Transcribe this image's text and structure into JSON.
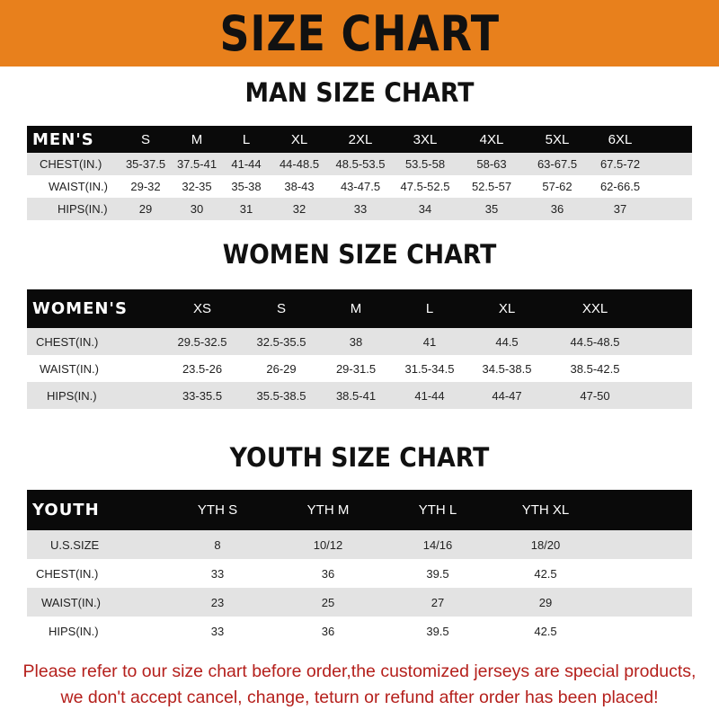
{
  "banner_title": "SIZE CHART",
  "accent_color": "#e8801c",
  "men": {
    "title": "MAN SIZE CHART",
    "header": "MEN'S",
    "sizes": [
      "S",
      "M",
      "L",
      "XL",
      "2XL",
      "3XL",
      "4XL",
      "5XL",
      "6XL"
    ],
    "rows": [
      {
        "label": "CHEST(IN.)",
        "values": [
          "35-37.5",
          "37.5-41",
          "41-44",
          "44-48.5",
          "48.5-53.5",
          "53.5-58",
          "58-63",
          "63-67.5",
          "67.5-72"
        ]
      },
      {
        "label": "WAIST(IN.)",
        "values": [
          "29-32",
          "32-35",
          "35-38",
          "38-43",
          "43-47.5",
          "47.5-52.5",
          "52.5-57",
          "57-62",
          "62-66.5"
        ]
      },
      {
        "label": "HIPS(IN.)",
        "values": [
          "29",
          "30",
          "31",
          "32",
          "33",
          "34",
          "35",
          "36",
          "37"
        ]
      }
    ]
  },
  "women": {
    "title": "WOMEN SIZE CHART",
    "header": "WOMEN'S",
    "sizes": [
      "XS",
      "S",
      "M",
      "L",
      "XL",
      "XXL"
    ],
    "rows": [
      {
        "label": "CHEST(IN.)",
        "values": [
          "29.5-32.5",
          "32.5-35.5",
          "38",
          "41",
          "44.5",
          "44.5-48.5"
        ]
      },
      {
        "label": "WAIST(IN.)",
        "values": [
          "23.5-26",
          "26-29",
          "29-31.5",
          "31.5-34.5",
          "34.5-38.5",
          "38.5-42.5"
        ]
      },
      {
        "label": "HIPS(IN.)",
        "values": [
          "33-35.5",
          "35.5-38.5",
          "38.5-41",
          "41-44",
          "44-47",
          "47-50"
        ]
      }
    ]
  },
  "youth": {
    "title": "YOUTH SIZE CHART",
    "header": "YOUTH",
    "sizes": [
      "YTH S",
      "YTH M",
      "YTH L",
      "YTH XL"
    ],
    "rows": [
      {
        "label": "U.S.SIZE",
        "values": [
          "8",
          "10/12",
          "14/16",
          "18/20"
        ]
      },
      {
        "label": "CHEST(IN.)",
        "values": [
          "33",
          "36",
          "39.5",
          "42.5"
        ]
      },
      {
        "label": "WAIST(IN.)",
        "values": [
          "23",
          "25",
          "27",
          "29"
        ]
      },
      {
        "label": "HIPS(IN.)",
        "values": [
          "33",
          "36",
          "39.5",
          "42.5"
        ]
      }
    ]
  },
  "notice": {
    "line1": "Please refer to our size chart before order,the customized jerseys are special products,",
    "line2": "we don't accept cancel, change, teturn or refund after order has been placed!"
  }
}
